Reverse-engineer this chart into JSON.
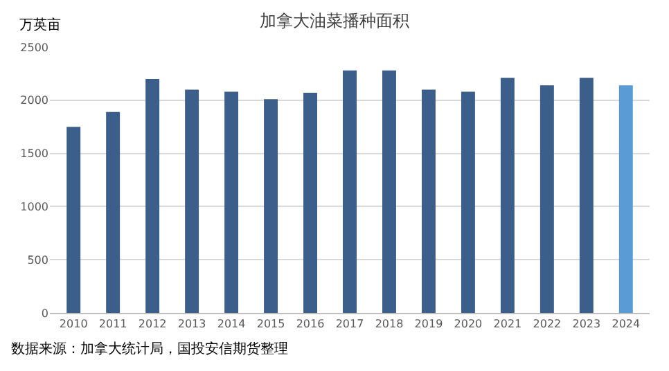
{
  "chart_data": {
    "type": "bar",
    "title": "加拿大油菜播种面积",
    "ylabel": "万英亩",
    "categories": [
      "2010",
      "2011",
      "2012",
      "2013",
      "2014",
      "2015",
      "2016",
      "2017",
      "2018",
      "2019",
      "2020",
      "2021",
      "2022",
      "2023",
      "2024"
    ],
    "values": [
      1750,
      1890,
      2200,
      2100,
      2080,
      2010,
      2070,
      2280,
      2280,
      2100,
      2080,
      2210,
      2140,
      2210,
      2140
    ],
    "colors": [
      "#3b5f8a",
      "#3b5f8a",
      "#3b5f8a",
      "#3b5f8a",
      "#3b5f8a",
      "#3b5f8a",
      "#3b5f8a",
      "#3b5f8a",
      "#3b5f8a",
      "#3b5f8a",
      "#3b5f8a",
      "#3b5f8a",
      "#3b5f8a",
      "#3b5f8a",
      "#5b9bd5"
    ],
    "ylim": [
      0,
      2500
    ],
    "yticks": [
      0,
      500,
      1000,
      1500,
      2000,
      2500
    ],
    "grid": "y",
    "annotations": [
      "数据来源：加拿大统计局，国投安信期货整理"
    ]
  }
}
